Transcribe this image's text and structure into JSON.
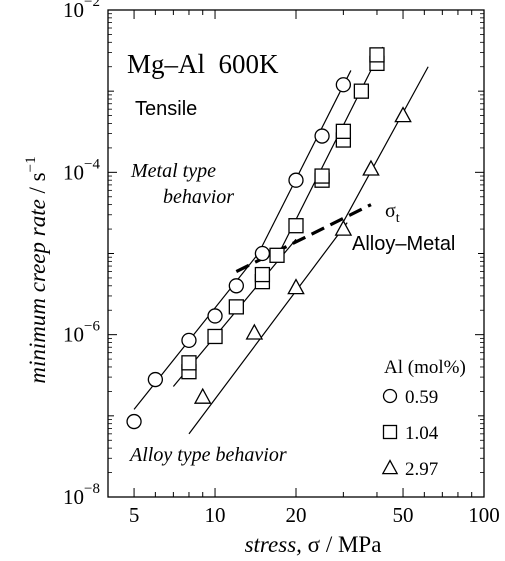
{
  "chart_data": {
    "type": "scatter",
    "title": "Mg–Al  600K",
    "subtitle": "Tensile",
    "xlabel": {
      "italic": "stress,",
      "symbol": "σ",
      "unit": "/ MPa"
    },
    "ylabel": {
      "italic": "minimum creep rate",
      "unit": "/ s",
      "exp": "−1"
    },
    "x_scale": "log",
    "y_scale": "log",
    "xlim": [
      4,
      100
    ],
    "ylim": [
      1e-08,
      0.01
    ],
    "x_ticks": [
      {
        "value": 5,
        "label": "5"
      },
      {
        "value": 10,
        "label": "10"
      },
      {
        "value": 20,
        "label": "20"
      },
      {
        "value": 50,
        "label": "50"
      },
      {
        "value": 100,
        "label": "100"
      }
    ],
    "y_ticks": [
      {
        "value": 1e-08,
        "base": "10",
        "exp": "−8"
      },
      {
        "value": 1e-06,
        "base": "10",
        "exp": "−6"
      },
      {
        "value": 0.0001,
        "base": "10",
        "exp": "−4"
      },
      {
        "value": 0.01,
        "base": "10",
        "exp": "−2"
      }
    ],
    "legend": {
      "title": "Al (mol%)",
      "position": "bottom-right"
    },
    "series": [
      {
        "name": "0.59",
        "marker": "circle",
        "points": [
          [
            5,
            8.5e-08
          ],
          [
            6,
            2.8e-07
          ],
          [
            8,
            8.5e-07
          ],
          [
            10,
            1.7e-06
          ],
          [
            12,
            4e-06
          ],
          [
            15,
            1e-05
          ],
          [
            20,
            8e-05
          ],
          [
            25,
            0.00028
          ],
          [
            30,
            0.0012
          ]
        ],
        "fit_lines": [
          [
            [
              5,
              1.2e-07
            ],
            [
              14.5,
              1e-05
            ]
          ],
          [
            [
              14.5,
              1e-05
            ],
            [
              32,
              0.0018
            ]
          ]
        ]
      },
      {
        "name": "1.04",
        "marker": "square",
        "points": [
          [
            8,
            3.5e-07
          ],
          [
            8,
            4.5e-07
          ],
          [
            10,
            9.5e-07
          ],
          [
            12,
            2.2e-06
          ],
          [
            15,
            4.5e-06
          ],
          [
            15,
            5.5e-06
          ],
          [
            17,
            9.5e-06
          ],
          [
            20,
            2.2e-05
          ],
          [
            25,
            8e-05
          ],
          [
            25,
            9e-05
          ],
          [
            30,
            0.00025
          ],
          [
            30,
            0.00032
          ],
          [
            35,
            0.001
          ],
          [
            40,
            0.0022
          ],
          [
            40,
            0.0028
          ]
        ],
        "fit_lines": [
          [
            [
              7,
              2.3e-07
            ],
            [
              20,
              1.5e-05
            ]
          ],
          [
            [
              17,
              9e-06
            ],
            [
              42,
              0.0035
            ]
          ]
        ]
      },
      {
        "name": "2.97",
        "marker": "triangle",
        "points": [
          [
            9,
            1.7e-07
          ],
          [
            14,
            1.05e-06
          ],
          [
            20,
            3.8e-06
          ],
          [
            30,
            2e-05
          ],
          [
            38,
            0.00011
          ],
          [
            50,
            0.0005
          ]
        ],
        "fit_lines": [
          [
            [
              8,
              6e-08
            ],
            [
              31,
              2.4e-05
            ]
          ],
          [
            [
              29,
              2e-05
            ],
            [
              62,
              0.002
            ]
          ]
        ]
      }
    ],
    "transition_line": {
      "points": [
        [
          12,
          6e-06
        ],
        [
          38,
          4e-05
        ]
      ],
      "style": "dashed"
    },
    "annotations": {
      "metal_line1": "Metal type",
      "metal_line2": "behavior",
      "sigma_t": "σ",
      "sigma_t_sub": "t",
      "alloy_metal": "Alloy–Metal",
      "alloy_type": "Alloy type behavior"
    }
  }
}
